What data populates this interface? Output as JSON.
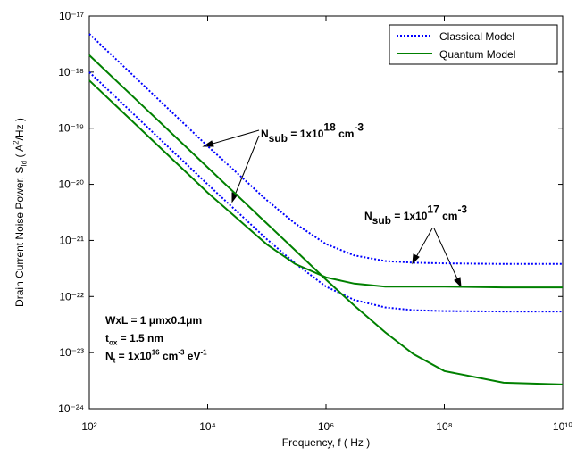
{
  "chart_data": {
    "type": "line",
    "xlabel": "Frequency, f ( Hz )",
    "ylabel": [
      {
        "text": "Drain Current Noise Power, S"
      },
      {
        "sub": "Id"
      },
      {
        "text": " ( A"
      },
      {
        "sup": "2"
      },
      {
        "text": "/Hz )"
      }
    ],
    "xscale": "log",
    "yscale": "log",
    "xlim": [
      100,
      10000000000
    ],
    "ylim": [
      1e-24,
      1e-17
    ],
    "xticks": [
      {
        "value": 100,
        "label": "10²"
      },
      {
        "value": 10000,
        "label": "10⁴"
      },
      {
        "value": 1000000,
        "label": "10⁶"
      },
      {
        "value": 100000000,
        "label": "10⁸"
      },
      {
        "value": 10000000000,
        "label": "10¹⁰"
      }
    ],
    "yticks": [
      {
        "value": 1e-24,
        "label": "10⁻²⁴"
      },
      {
        "value": 1e-23,
        "label": "10⁻²³"
      },
      {
        "value": 1e-22,
        "label": "10⁻²²"
      },
      {
        "value": 1e-21,
        "label": "10⁻²¹"
      },
      {
        "value": 1e-20,
        "label": "10⁻²⁰"
      },
      {
        "value": 1e-19,
        "label": "10⁻¹⁹"
      },
      {
        "value": 1e-18,
        "label": "10⁻¹⁸"
      },
      {
        "value": 1e-17,
        "label": "10⁻¹⁷"
      }
    ],
    "legend": "upper right",
    "x": [
      100,
      1000,
      10000,
      100000,
      300000,
      1000000,
      3000000,
      10000000,
      30000000,
      100000000,
      1000000000,
      10000000000
    ],
    "series": [
      {
        "name": "Classical Model",
        "color": "#0000ff",
        "dash": "dotted",
        "curves": [
          [
            4.8e-18,
            4.8e-19,
            4.8e-20,
            5.2e-21,
            2e-21,
            8.6e-22,
            5.4e-22,
            4.3e-22,
            4e-22,
            3.9e-22,
            3.8e-22,
            3.8e-22
          ],
          [
            1e-18,
            1e-19,
            1e-20,
            1.05e-21,
            3.9e-22,
            1.5e-22,
            8.7e-23,
            6.4e-23,
            5.7e-23,
            5.5e-23,
            5.4e-23,
            5.4e-23
          ]
        ]
      },
      {
        "name": "Quantum Model",
        "color": "#008000",
        "dash": "solid",
        "curves": [
          [
            2e-18,
            2e-19,
            2e-20,
            2e-21,
            6.7e-22,
            2e-22,
            6.9e-23,
            2.3e-23,
            9.4e-24,
            4.7e-24,
            2.9e-24,
            2.7e-24
          ],
          [
            7.1e-19,
            7.1e-20,
            7.1e-21,
            8.5e-22,
            3.8e-22,
            2.2e-22,
            1.7e-22,
            1.5e-22,
            1.5e-22,
            1.5e-22,
            1.45e-22,
            1.45e-22
          ]
        ]
      }
    ],
    "annotations": [
      {
        "segments": [
          {
            "text": "N"
          },
          {
            "sub": "sub"
          },
          {
            "text": " = 1x10"
          },
          {
            "sup": "18"
          },
          {
            "text": " cm"
          },
          {
            "sup": "-3"
          }
        ]
      },
      {
        "segments": [
          {
            "text": "N"
          },
          {
            "sub": "sub"
          },
          {
            "text": " = 1x10"
          },
          {
            "sup": "17"
          },
          {
            "text": " cm"
          },
          {
            "sup": "-3"
          }
        ]
      },
      {
        "segments": [
          {
            "text": "WxL = 1 μmx0.1μm"
          }
        ]
      },
      {
        "segments": [
          {
            "text": "t"
          },
          {
            "sub": "ox"
          },
          {
            "text": " = 1.5 nm"
          }
        ]
      },
      {
        "segments": [
          {
            "text": "N"
          },
          {
            "sub": "t"
          },
          {
            "text": " = 1x10"
          },
          {
            "sup": "16"
          },
          {
            "text": " cm"
          },
          {
            "sup": "-3"
          },
          {
            "text": " eV"
          },
          {
            "sup": "-1"
          }
        ]
      }
    ]
  }
}
